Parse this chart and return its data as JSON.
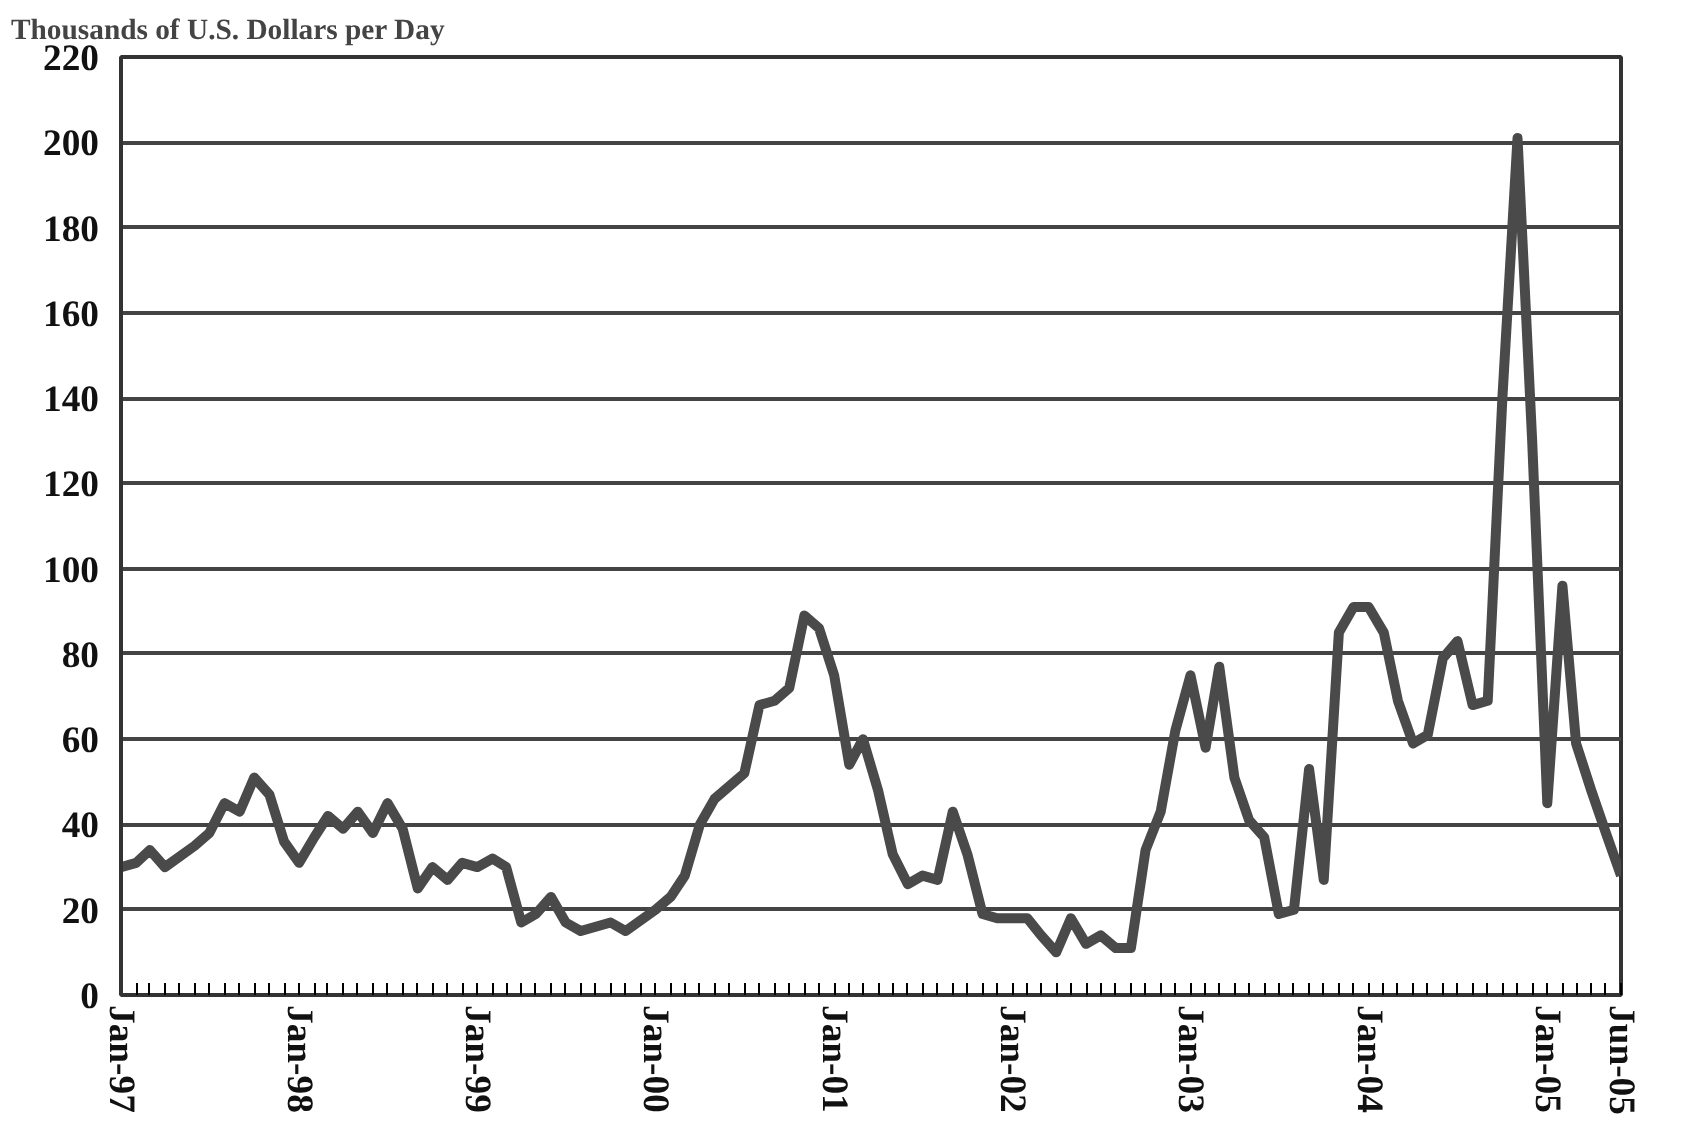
{
  "chart_data": {
    "type": "line",
    "ylabel": "Thousands of U.S. Dollars per Day",
    "x": [
      "1997-01",
      "1997-02",
      "1997-03",
      "1997-04",
      "1997-06",
      "1997-07",
      "1997-08",
      "1997-09",
      "1997-10",
      "1997-11",
      "1997-12",
      "1998-01",
      "1998-02",
      "1998-03",
      "1998-04",
      "1998-05",
      "1998-06",
      "1998-07",
      "1998-08",
      "1998-09",
      "1998-10",
      "1998-11",
      "1998-12",
      "1999-01",
      "1999-02",
      "1999-03",
      "1999-04",
      "1999-05",
      "1999-06",
      "1999-07",
      "1999-08",
      "1999-10",
      "1999-11",
      "2000-01",
      "2000-02",
      "2000-03",
      "2000-04",
      "2000-05",
      "2000-07",
      "2000-08",
      "2000-09",
      "2000-10",
      "2000-11",
      "2000-12",
      "2001-01",
      "2001-02",
      "2001-03",
      "2001-04",
      "2001-05",
      "2001-06",
      "2001-07",
      "2001-08",
      "2001-09",
      "2001-10",
      "2001-11",
      "2001-12",
      "2002-02",
      "2002-03",
      "2002-04",
      "2002-05",
      "2002-06",
      "2002-07",
      "2002-08",
      "2002-09",
      "2002-10",
      "2002-11",
      "2002-12",
      "2003-01",
      "2003-02",
      "2003-03",
      "2003-04",
      "2003-05",
      "2003-06",
      "2003-07",
      "2003-08",
      "2003-09",
      "2003-10",
      "2003-11",
      "2003-12",
      "2004-01",
      "2004-02",
      "2004-03",
      "2004-04",
      "2004-05",
      "2004-06",
      "2004-07",
      "2004-08",
      "2004-09",
      "2004-10",
      "2004-11",
      "2004-12",
      "2005-01",
      "2005-02",
      "2005-03",
      "2005-04",
      "2005-05",
      "2005-06"
    ],
    "series": [
      {
        "color": "#4a4a4a",
        "values": [
          30,
          31,
          34,
          30,
          35,
          38,
          45,
          43,
          51,
          47,
          36,
          31,
          37,
          42,
          39,
          43,
          38,
          45,
          39,
          25,
          30,
          27,
          31,
          30,
          32,
          30,
          17,
          19,
          23,
          17,
          15,
          17,
          15,
          20,
          23,
          28,
          40,
          46,
          52,
          68,
          69,
          72,
          89,
          86,
          75,
          54,
          60,
          48,
          33,
          26,
          28,
          27,
          43,
          33,
          19,
          18,
          18,
          14,
          10,
          18,
          12,
          14,
          11,
          11,
          34,
          43,
          62,
          75,
          58,
          77,
          51,
          41,
          37,
          19,
          20,
          53,
          27,
          85,
          91,
          91,
          85,
          69,
          59,
          61,
          79,
          83,
          68,
          69,
          140,
          201,
          130,
          45,
          96,
          59,
          48,
          38,
          28
        ]
      }
    ],
    "xlim": [
      "1997-01",
      "2005-06"
    ],
    "xticks": [
      {
        "value": "1997-01",
        "label": "Jan-97"
      },
      {
        "value": "1998-01",
        "label": "Jan-98"
      },
      {
        "value": "1999-01",
        "label": "Jan-99"
      },
      {
        "value": "2000-01",
        "label": "Jan-00"
      },
      {
        "value": "2001-01",
        "label": "Jan-01"
      },
      {
        "value": "2002-01",
        "label": "Jan-02"
      },
      {
        "value": "2003-01",
        "label": "Jan-03"
      },
      {
        "value": "2004-01",
        "label": "Jan-04"
      },
      {
        "value": "2005-01",
        "label": "Jan-05"
      },
      {
        "value": "2005-06",
        "label": "Jun-05"
      }
    ],
    "ylim": [
      0,
      220
    ],
    "yticks": [
      0,
      20,
      40,
      60,
      80,
      100,
      120,
      140,
      160,
      180,
      200,
      220
    ],
    "grid": "y",
    "marker": "none",
    "line_style": "solid"
  }
}
